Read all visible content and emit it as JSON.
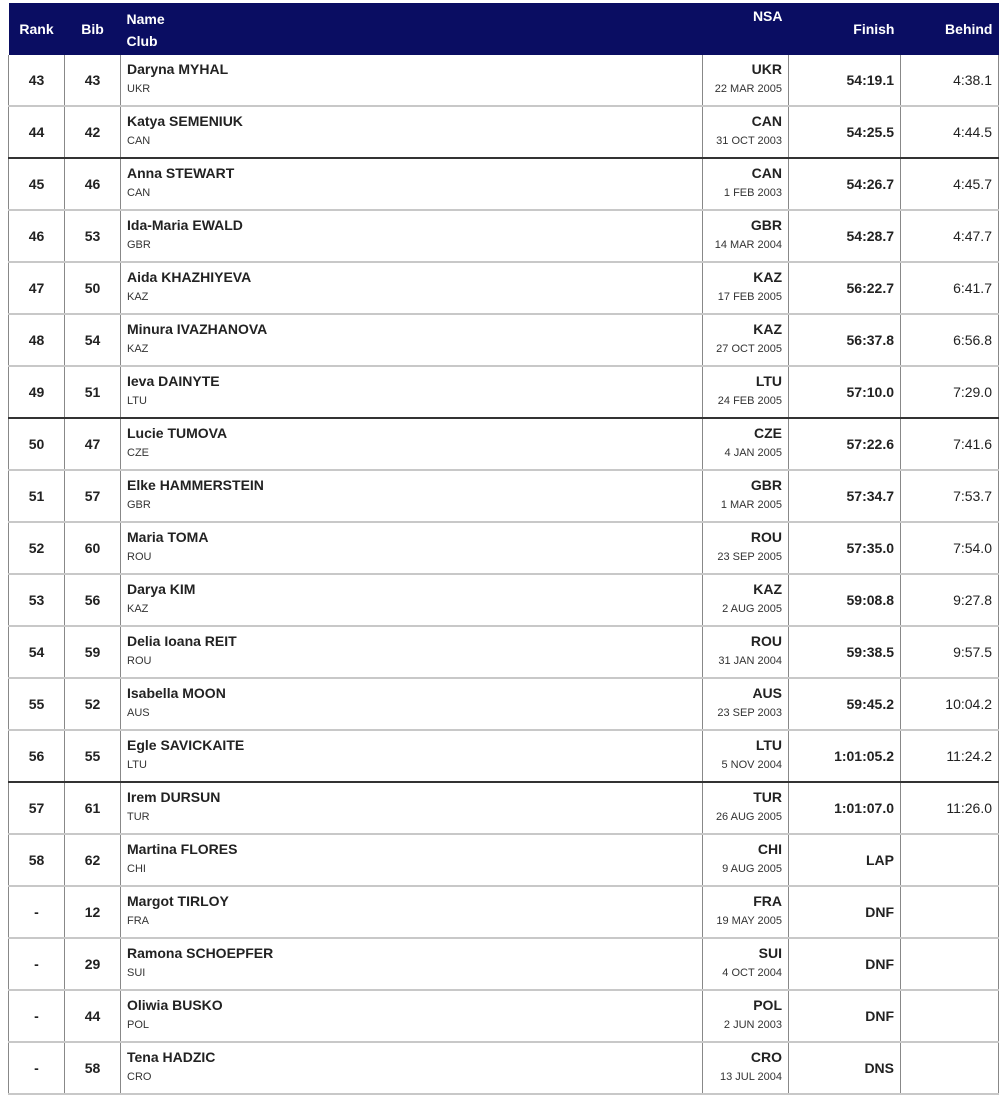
{
  "headers": {
    "rank": "Rank",
    "bib": "Bib",
    "name": "Name",
    "club": "Club",
    "nsa": "NSA",
    "finish": "Finish",
    "behind": "Behind"
  },
  "rows": [
    {
      "rank": "43",
      "bib": "43",
      "name": "Daryna MYHAL",
      "club": "UKR",
      "nsa": "UKR",
      "dob": "22 MAR 2005",
      "finish": "54:19.1",
      "behind": "4:38.1"
    },
    {
      "rank": "44",
      "bib": "42",
      "name": "Katya SEMENIUK",
      "club": "CAN",
      "nsa": "CAN",
      "dob": "31 OCT 2003",
      "finish": "54:25.5",
      "behind": "4:44.5"
    },
    {
      "rank": "45",
      "bib": "46",
      "name": "Anna STEWART",
      "club": "CAN",
      "nsa": "CAN",
      "dob": "1 FEB 2003",
      "finish": "54:26.7",
      "behind": "4:45.7"
    },
    {
      "rank": "46",
      "bib": "53",
      "name": "Ida-Maria EWALD",
      "club": "GBR",
      "nsa": "GBR",
      "dob": "14 MAR 2004",
      "finish": "54:28.7",
      "behind": "4:47.7"
    },
    {
      "rank": "47",
      "bib": "50",
      "name": "Aida KHAZHIYEVA",
      "club": "KAZ",
      "nsa": "KAZ",
      "dob": "17 FEB 2005",
      "finish": "56:22.7",
      "behind": "6:41.7"
    },
    {
      "rank": "48",
      "bib": "54",
      "name": "Minura IVAZHANOVA",
      "club": "KAZ",
      "nsa": "KAZ",
      "dob": "27 OCT 2005",
      "finish": "56:37.8",
      "behind": "6:56.8"
    },
    {
      "rank": "49",
      "bib": "51",
      "name": "Ieva DAINYTE",
      "club": "LTU",
      "nsa": "LTU",
      "dob": "24 FEB 2005",
      "finish": "57:10.0",
      "behind": "7:29.0"
    },
    {
      "rank": "50",
      "bib": "47",
      "name": "Lucie TUMOVA",
      "club": "CZE",
      "nsa": "CZE",
      "dob": "4 JAN 2005",
      "finish": "57:22.6",
      "behind": "7:41.6"
    },
    {
      "rank": "51",
      "bib": "57",
      "name": "Elke HAMMERSTEIN",
      "club": "GBR",
      "nsa": "GBR",
      "dob": "1 MAR 2005",
      "finish": "57:34.7",
      "behind": "7:53.7"
    },
    {
      "rank": "52",
      "bib": "60",
      "name": "Maria TOMA",
      "club": "ROU",
      "nsa": "ROU",
      "dob": "23 SEP 2005",
      "finish": "57:35.0",
      "behind": "7:54.0"
    },
    {
      "rank": "53",
      "bib": "56",
      "name": "Darya KIM",
      "club": "KAZ",
      "nsa": "KAZ",
      "dob": "2 AUG 2005",
      "finish": "59:08.8",
      "behind": "9:27.8"
    },
    {
      "rank": "54",
      "bib": "59",
      "name": "Delia Ioana REIT",
      "club": "ROU",
      "nsa": "ROU",
      "dob": "31 JAN 2004",
      "finish": "59:38.5",
      "behind": "9:57.5"
    },
    {
      "rank": "55",
      "bib": "52",
      "name": "Isabella MOON",
      "club": "AUS",
      "nsa": "AUS",
      "dob": "23 SEP 2003",
      "finish": "59:45.2",
      "behind": "10:04.2"
    },
    {
      "rank": "56",
      "bib": "55",
      "name": "Egle SAVICKAITE",
      "club": "LTU",
      "nsa": "LTU",
      "dob": "5 NOV 2004",
      "finish": "1:01:05.2",
      "behind": "11:24.2"
    },
    {
      "rank": "57",
      "bib": "61",
      "name": "Irem DURSUN",
      "club": "TUR",
      "nsa": "TUR",
      "dob": "26 AUG 2005",
      "finish": "1:01:07.0",
      "behind": "11:26.0"
    },
    {
      "rank": "58",
      "bib": "62",
      "name": "Martina FLORES",
      "club": "CHI",
      "nsa": "CHI",
      "dob": "9 AUG 2005",
      "finish": "LAP",
      "behind": ""
    },
    {
      "rank": "-",
      "bib": "12",
      "name": "Margot TIRLOY",
      "club": "FRA",
      "nsa": "FRA",
      "dob": "19 MAY 2005",
      "finish": "DNF",
      "behind": ""
    },
    {
      "rank": "-",
      "bib": "29",
      "name": "Ramona SCHOEPFER",
      "club": "SUI",
      "nsa": "SUI",
      "dob": "4 OCT 2004",
      "finish": "DNF",
      "behind": ""
    },
    {
      "rank": "-",
      "bib": "44",
      "name": "Oliwia BUSKO",
      "club": "POL",
      "nsa": "POL",
      "dob": "2 JUN 2003",
      "finish": "DNF",
      "behind": ""
    },
    {
      "rank": "-",
      "bib": "58",
      "name": "Tena HADZIC",
      "club": "CRO",
      "nsa": "CRO",
      "dob": "13 JUL 2004",
      "finish": "DNS",
      "behind": ""
    }
  ]
}
